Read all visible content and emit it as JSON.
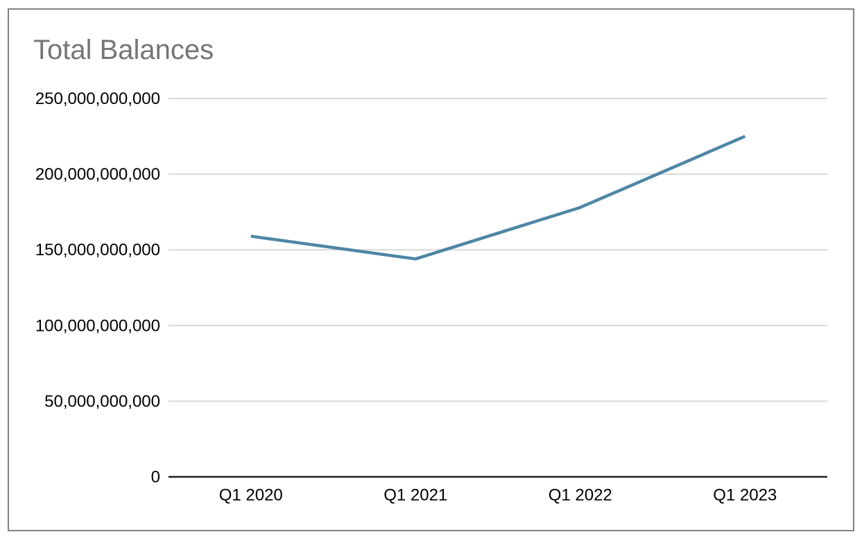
{
  "window": {
    "background": "#ffffff",
    "border_color": "#808080"
  },
  "chart_data": {
    "type": "line",
    "title": "Total Balances",
    "title_color": "#757575",
    "categories": [
      "Q1 2020",
      "Q1 2021",
      "Q1 2022",
      "Q1 2023"
    ],
    "series": [
      {
        "name": "Total Balances",
        "values": [
          159000000000,
          144000000000,
          178000000000,
          225000000000
        ],
        "color": "#4e86a5"
      }
    ],
    "xlabel": "",
    "ylabel": "",
    "ylim": [
      0,
      250000000000
    ],
    "y_ticks": [
      0,
      50000000000,
      100000000000,
      150000000000,
      200000000000,
      250000000000
    ],
    "y_tick_labels": [
      "0",
      "50,000,000,000",
      "100,000,000,000",
      "150,000,000,000",
      "200,000,000,000",
      "250,000,000,000"
    ],
    "grid": true,
    "legend_position": "none",
    "colors": {
      "gridline": "#d9d9d9",
      "axis_line": "#212121",
      "tick_label": "#000000"
    }
  }
}
